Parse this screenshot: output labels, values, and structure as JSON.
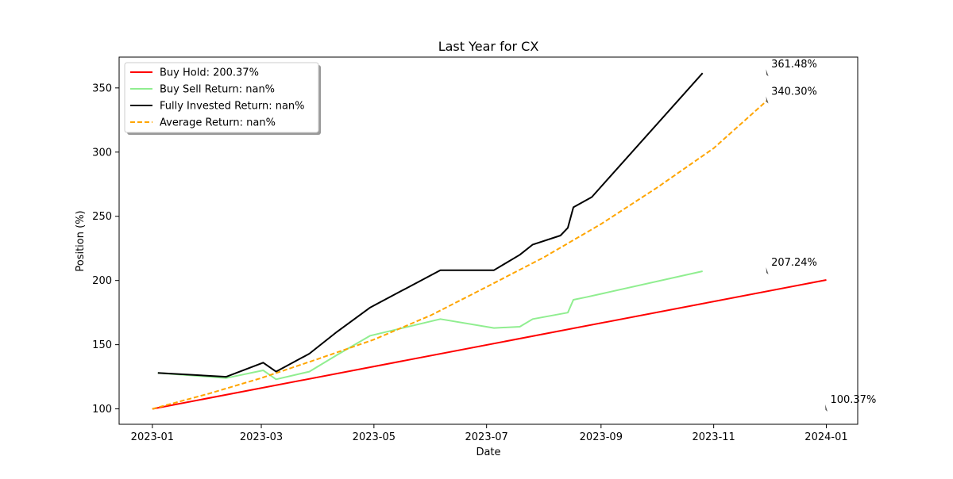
{
  "chart_data": {
    "type": "line",
    "title": "Last Year for CX",
    "xlabel": "Date",
    "ylabel": "Position (%)",
    "xlim": [
      "2022-12-14",
      "2024-01-18"
    ],
    "ylim": [
      88,
      374
    ],
    "x_ticks": [
      "2023-01",
      "2023-03",
      "2023-05",
      "2023-07",
      "2023-09",
      "2023-11",
      "2024-01"
    ],
    "y_ticks": [
      100,
      150,
      200,
      250,
      300,
      350
    ],
    "legend_position": "top-left",
    "grid": false,
    "series": [
      {
        "name": "Buy Hold: 200.37%",
        "color": "#ff0000",
        "style": "solid",
        "x": [
          "2023-01-01",
          "2024-01-01"
        ],
        "y": [
          100.0,
          200.4
        ]
      },
      {
        "name": "Buy Sell Return: nan%",
        "color": "#90ee90",
        "style": "solid",
        "x": [
          "2023-01-04",
          "2023-02-10",
          "2023-03-02",
          "2023-03-09",
          "2023-03-27",
          "2023-04-11",
          "2023-04-29",
          "2023-06-06",
          "2023-07-05",
          "2023-07-19",
          "2023-07-26",
          "2023-08-14",
          "2023-08-17",
          "2023-08-24",
          "2023-10-26"
        ],
        "y": [
          128,
          124,
          130,
          123,
          129,
          142,
          157,
          170,
          163,
          164,
          170,
          175,
          185,
          187,
          207.2
        ]
      },
      {
        "name": "Fully Invested Return: nan%",
        "color": "#000000",
        "style": "solid",
        "x": [
          "2023-01-04",
          "2023-02-10",
          "2023-03-02",
          "2023-03-09",
          "2023-03-27",
          "2023-04-11",
          "2023-04-29",
          "2023-06-06",
          "2023-07-05",
          "2023-07-19",
          "2023-07-26",
          "2023-08-10",
          "2023-08-14",
          "2023-08-17",
          "2023-08-27",
          "2023-10-26"
        ],
        "y": [
          128,
          125,
          136,
          129,
          143,
          160,
          179,
          208,
          208,
          220,
          228,
          235,
          241,
          257,
          265,
          361.5
        ]
      },
      {
        "name": "Average Return: nan%",
        "color": "#ffa500",
        "style": "dashed",
        "x": [
          "2023-01-01",
          "2023-02-01",
          "2023-03-01",
          "2023-04-01",
          "2023-05-01",
          "2023-06-01",
          "2023-07-01",
          "2023-08-01",
          "2023-09-01",
          "2023-10-01",
          "2023-11-01",
          "2023-11-30"
        ],
        "y": [
          100,
          112,
          124,
          139,
          154,
          173,
          195,
          218,
          244,
          272,
          303,
          340.3
        ]
      }
    ],
    "annotations": [
      {
        "text": "361.48%",
        "x": "2023-11-30",
        "y": 361.5
      },
      {
        "text": "340.30%",
        "x": "2023-11-30",
        "y": 340.3
      },
      {
        "text": "207.24%",
        "x": "2023-11-30",
        "y": 207.2
      },
      {
        "text": "100.37%",
        "x": "2024-01-01",
        "y": 100.4
      }
    ]
  }
}
